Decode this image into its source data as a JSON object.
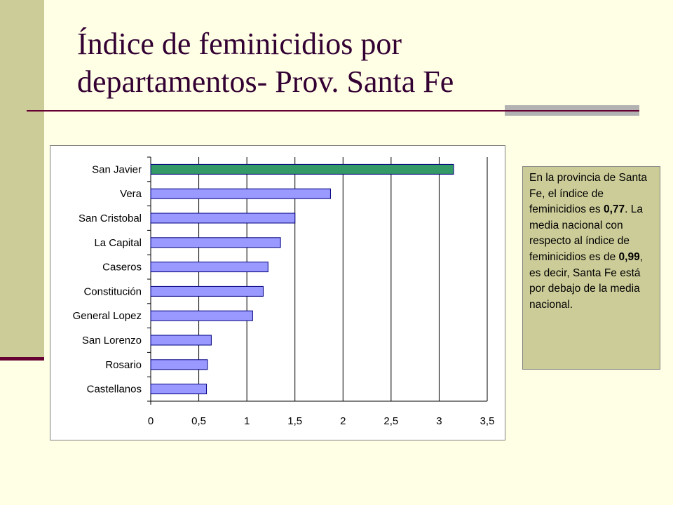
{
  "title": {
    "line1": "Índice de feminicidios por",
    "line2": "departamentos- Prov. Santa Fe"
  },
  "note": {
    "t1": "En la provincia de Santa Fe, el índice de feminicidios es ",
    "v1": "0,77",
    "t2": ". La media nacional con respecto al índice de feminicidios es de ",
    "v2": "0,99",
    "t3": ", es decir, Santa Fe está por debajo de la media nacional."
  },
  "colors": {
    "highlight_bar": "#339966",
    "bar": "#9999FF",
    "bar_border": "#000080"
  },
  "chart_data": {
    "type": "bar",
    "orientation": "horizontal",
    "categories": [
      "San Javier",
      "Vera",
      "San Cristobal",
      "La Capital",
      "Caseros",
      "Constitución",
      "General Lopez",
      "San Lorenzo",
      "Rosario",
      "Castellanos"
    ],
    "values": [
      3.15,
      1.87,
      1.5,
      1.35,
      1.22,
      1.17,
      1.06,
      0.63,
      0.59,
      0.58
    ],
    "highlight_index": 0,
    "xlim": [
      0,
      3.5
    ],
    "xticks": [
      "0",
      "0,5",
      "1",
      "1,5",
      "2",
      "2,5",
      "3",
      "3,5"
    ],
    "grid": "vertical",
    "xlabel": "",
    "ylabel": ""
  }
}
